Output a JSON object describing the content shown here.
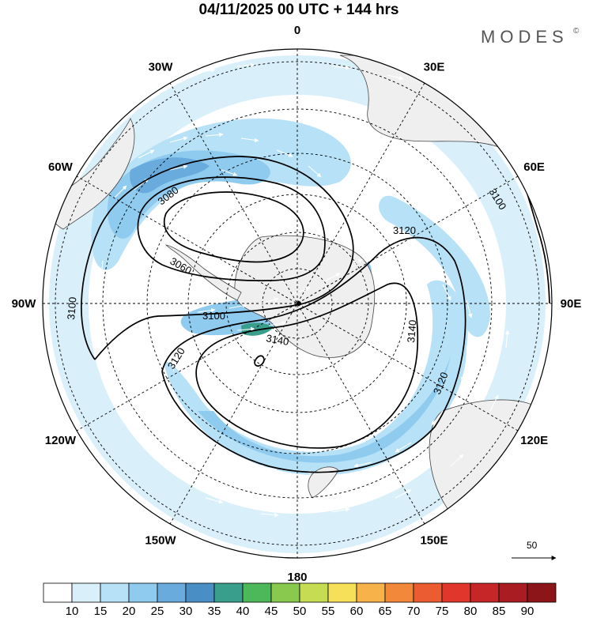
{
  "title": "04/11/2025  00 UTC  + 144 hrs",
  "brand": "MODES",
  "brand_mark": "©",
  "map": {
    "projection": "south-polar-stereographic",
    "meridian_labels": [
      {
        "text": "0",
        "lon": 0
      },
      {
        "text": "30E",
        "lon": 30
      },
      {
        "text": "60E",
        "lon": 60
      },
      {
        "text": "90E",
        "lon": 90
      },
      {
        "text": "120E",
        "lon": 120
      },
      {
        "text": "150E",
        "lon": 150
      },
      {
        "text": "180",
        "lon": 180
      },
      {
        "text": "150W",
        "lon": -150
      },
      {
        "text": "120W",
        "lon": -120
      },
      {
        "text": "90W",
        "lon": -90
      },
      {
        "text": "60W",
        "lon": -60
      },
      {
        "text": "30W",
        "lon": -30
      }
    ],
    "latitude_circles": [
      -80,
      -70,
      -60,
      -50,
      -40,
      -30,
      -20
    ],
    "contour_labels": [
      "3060",
      "3080",
      "3100",
      "3120",
      "3140"
    ],
    "wind_reference_label": "50"
  },
  "colorbar": {
    "ticks": [
      "10",
      "15",
      "20",
      "25",
      "30",
      "35",
      "40",
      "45",
      "50",
      "55",
      "60",
      "65",
      "70",
      "75",
      "80",
      "85",
      "90"
    ],
    "colors": [
      "#ffffff",
      "#d9f0fb",
      "#b6e1f6",
      "#8ecbef",
      "#68abdc",
      "#4a8ec6",
      "#3a9e8c",
      "#4cb85a",
      "#88c94e",
      "#c6dc52",
      "#f6e05a",
      "#f7b24a",
      "#f2883a",
      "#ec5c31",
      "#e0362c",
      "#c62628",
      "#a81c22",
      "#8b1518"
    ]
  }
}
